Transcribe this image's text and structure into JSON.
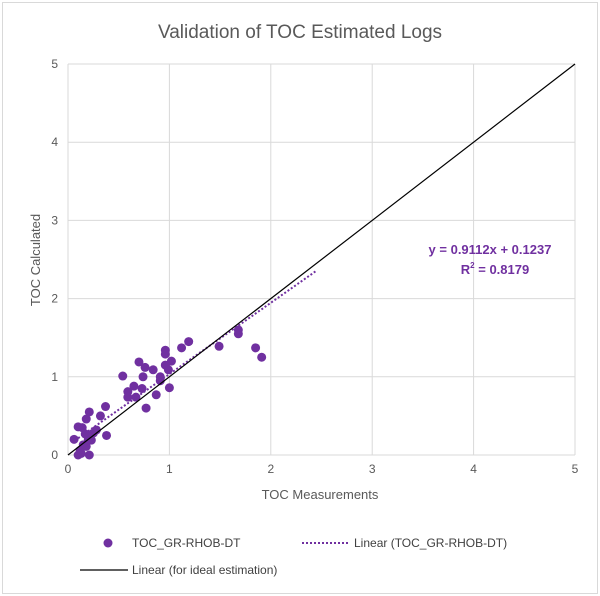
{
  "chart_data": {
    "type": "scatter",
    "title": "Validation of TOC Estimated Logs",
    "xlabel": "TOC Measurements",
    "ylabel": "TOC Calculated",
    "xlim": [
      0,
      5
    ],
    "ylim": [
      0,
      5
    ],
    "xticks": [
      "0",
      "1",
      "2",
      "3",
      "4",
      "5"
    ],
    "yticks": [
      "0",
      "1",
      "2",
      "3",
      "4",
      "5"
    ],
    "grid": true,
    "legend_position": "bottom",
    "series": [
      {
        "name": "TOC_GR-RHOB-DT",
        "type": "scatter",
        "color": "#7030a0",
        "points": [
          [
            0.96,
            1.34
          ],
          [
            0.96,
            1.29
          ],
          [
            1.19,
            1.45
          ],
          [
            1.12,
            1.37
          ],
          [
            1.49,
            1.39
          ],
          [
            1.68,
            1.6
          ],
          [
            1.68,
            1.55
          ],
          [
            1.85,
            1.37
          ],
          [
            1.91,
            1.25
          ],
          [
            0.7,
            1.19
          ],
          [
            0.76,
            1.12
          ],
          [
            0.84,
            1.09
          ],
          [
            1.02,
            1.2
          ],
          [
            0.96,
            1.15
          ],
          [
            0.99,
            1.09
          ],
          [
            0.54,
            1.01
          ],
          [
            0.74,
            1.0
          ],
          [
            0.91,
            1.0
          ],
          [
            0.91,
            0.95
          ],
          [
            1.0,
            0.86
          ],
          [
            0.65,
            0.88
          ],
          [
            0.73,
            0.85
          ],
          [
            0.59,
            0.81
          ],
          [
            0.59,
            0.74
          ],
          [
            0.67,
            0.74
          ],
          [
            0.87,
            0.77
          ],
          [
            0.77,
            0.6
          ],
          [
            0.37,
            0.62
          ],
          [
            0.21,
            0.55
          ],
          [
            0.18,
            0.46
          ],
          [
            0.32,
            0.5
          ],
          [
            0.1,
            0.36
          ],
          [
            0.28,
            0.32
          ],
          [
            0.38,
            0.25
          ],
          [
            0.06,
            0.2
          ],
          [
            0.17,
            0.27
          ],
          [
            0.2,
            0.2
          ],
          [
            0.23,
            0.19
          ],
          [
            0.15,
            0.13
          ],
          [
            0.12,
            0.06
          ],
          [
            0.13,
            0.02
          ],
          [
            0.21,
            0.0
          ],
          [
            0.18,
            0.11
          ],
          [
            0.1,
            0.0
          ],
          [
            0.14,
            0.35
          ],
          [
            0.25,
            0.28
          ]
        ]
      },
      {
        "name": "Linear (TOC_GR-RHOB-DT)",
        "type": "trendline",
        "color": "#7030a0",
        "slope": 0.9112,
        "intercept": 0.1237,
        "x_range": [
          0.1,
          2.45
        ]
      },
      {
        "name": "Linear (for ideal estimation)",
        "type": "line",
        "color": "#000000",
        "points": [
          [
            0,
            0
          ],
          [
            5,
            5
          ]
        ]
      }
    ],
    "annotation": {
      "equation": "y = 0.9112x + 0.1237",
      "r2_label": "R",
      "r2_sup": "2",
      "r2_value": " = 0.8179"
    }
  }
}
